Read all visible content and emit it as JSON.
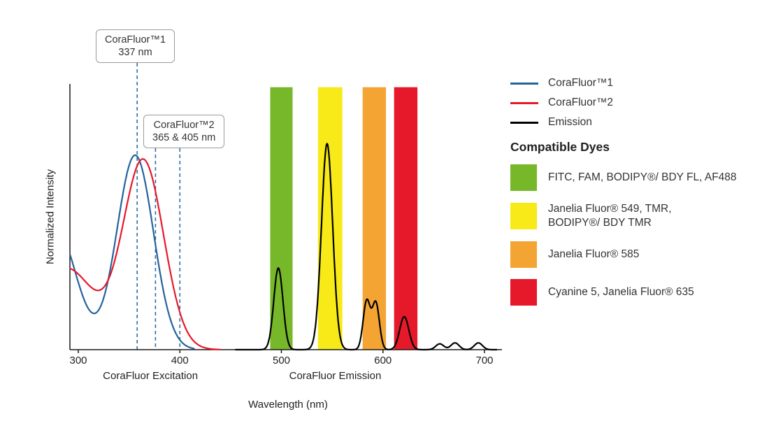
{
  "chart_data": {
    "type": "line",
    "xlabel": "Wavelength (nm)",
    "ylabel": "Normalized Intensity",
    "x_ticks": [
      300,
      400,
      500,
      600,
      700
    ],
    "xlim": [
      292,
      717
    ],
    "ylim": [
      0,
      1.37
    ],
    "grid": false,
    "legend_position": "top-right",
    "axis_section_labels": [
      {
        "text": "CoraFluor Excitation",
        "x_nm": 371
      },
      {
        "text": "CoraFluor Emission",
        "x_nm": 553
      }
    ],
    "bands": [
      {
        "name": "FITC-FAM-BODIPY-FL-AF488-window",
        "color": "#76b82a",
        "from_nm": 489,
        "to_nm": 511,
        "top": 1.35
      },
      {
        "name": "JF549-TMR-window",
        "color": "#f7ea18",
        "from_nm": 536,
        "to_nm": 560,
        "top": 1.35
      },
      {
        "name": "JF585-window",
        "color": "#f4a433",
        "from_nm": 580,
        "to_nm": 603,
        "top": 1.35
      },
      {
        "name": "Cy5-JF635-window",
        "color": "#e6192b",
        "from_nm": 611,
        "to_nm": 634,
        "top": 1.35
      }
    ],
    "annotations": [
      {
        "title": "CoraFluor™1",
        "subtitle": "337 nm",
        "lines_nm": [
          358
        ]
      },
      {
        "title": "CoraFluor™2",
        "subtitle": "365 & 405 nm",
        "lines_nm": [
          376,
          400
        ]
      }
    ],
    "series": [
      {
        "name": "CoraFluor™1",
        "color": "#25639b",
        "range_nm": [
          292,
          414
        ],
        "peaks": [
          {
            "center_nm": 278,
            "height": 0.62,
            "sigma_nm": 20
          },
          {
            "center_nm": 356,
            "height": 1.0,
            "sigma_nm": 18
          }
        ]
      },
      {
        "name": "CoraFluor™2",
        "color": "#e6192b",
        "range_nm": [
          292,
          440
        ],
        "peaks": [
          {
            "center_nm": 288,
            "height": 0.42,
            "sigma_nm": 28
          },
          {
            "center_nm": 364,
            "height": 0.97,
            "sigma_nm": 20
          }
        ]
      },
      {
        "name": "Emission",
        "color": "#000000",
        "range_nm": [
          455,
          712
        ],
        "peaks": [
          {
            "center_nm": 497,
            "height": 0.42,
            "sigma_nm": 4.5
          },
          {
            "center_nm": 545,
            "height": 1.06,
            "sigma_nm": 5.5
          },
          {
            "center_nm": 584,
            "height": 0.25,
            "sigma_nm": 3.5
          },
          {
            "center_nm": 593,
            "height": 0.24,
            "sigma_nm": 3.5
          },
          {
            "center_nm": 621,
            "height": 0.17,
            "sigma_nm": 4.5
          },
          {
            "center_nm": 656,
            "height": 0.03,
            "sigma_nm": 4
          },
          {
            "center_nm": 671,
            "height": 0.035,
            "sigma_nm": 4
          },
          {
            "center_nm": 694,
            "height": 0.035,
            "sigma_nm": 4
          }
        ]
      }
    ]
  },
  "legend": {
    "items": [
      {
        "label": "CoraFluor™1",
        "color": "#25639b"
      },
      {
        "label": "CoraFluor™2",
        "color": "#e6192b"
      },
      {
        "label": "Emission",
        "color": "#000000"
      }
    ]
  },
  "compatible_dyes": {
    "heading": "Compatible Dyes",
    "items": [
      {
        "color": "#76b82a",
        "label": "FITC, FAM, BODIPY®/ BDY FL, AF488"
      },
      {
        "color": "#f7ea18",
        "label": "Janelia Fluor® 549, TMR,\nBODIPY®/ BDY TMR"
      },
      {
        "color": "#f4a433",
        "label": "Janelia Fluor® 585"
      },
      {
        "color": "#e6192b",
        "label": "Cyanine 5, Janelia Fluor® 635"
      }
    ]
  }
}
